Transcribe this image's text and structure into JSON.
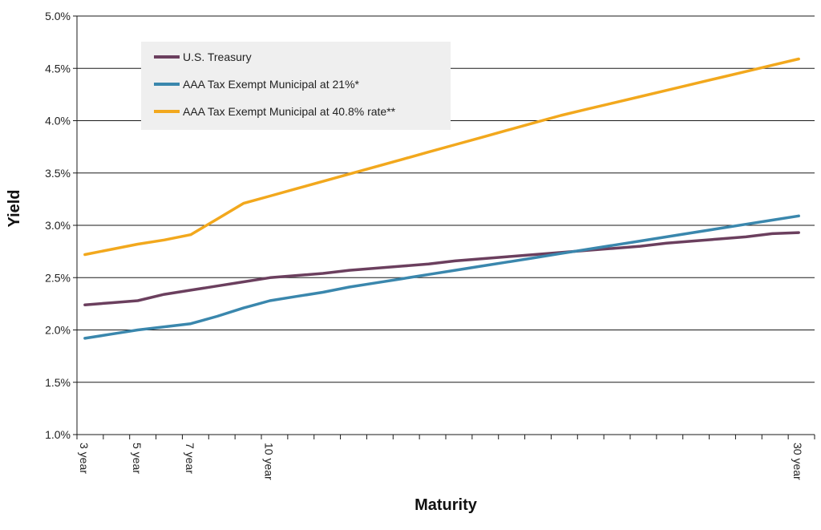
{
  "chart_data": {
    "type": "line",
    "title": "",
    "xlabel": "Maturity",
    "ylabel": "Yield",
    "x": [
      3,
      4,
      5,
      6,
      7,
      8,
      9,
      10,
      11,
      12,
      13,
      14,
      15,
      16,
      17,
      18,
      19,
      20,
      21,
      22,
      23,
      24,
      25,
      26,
      27,
      28,
      29,
      30
    ],
    "xlim": [
      2.7,
      30.6
    ],
    "x_tick_labels": [
      {
        "x": 3,
        "label": "3 year"
      },
      {
        "x": 5,
        "label": "5 year"
      },
      {
        "x": 7,
        "label": "7 year"
      },
      {
        "x": 10,
        "label": "10 year"
      },
      {
        "x": 30,
        "label": "30 year"
      }
    ],
    "ylim": [
      1.0,
      5.0
    ],
    "y_ticks": [
      1.0,
      1.5,
      2.0,
      2.5,
      3.0,
      3.5,
      4.0,
      4.5,
      5.0
    ],
    "y_tick_labels": [
      "1.0%",
      "1.5%",
      "2.0%",
      "2.5%",
      "3.0%",
      "3.5%",
      "4.0%",
      "4.5%",
      "5.0%"
    ],
    "grid": "horizontal",
    "legend_position": "top-left",
    "series": [
      {
        "name": "U.S. Treasury",
        "color": "#6b3f5e",
        "values": [
          2.24,
          2.26,
          2.28,
          2.34,
          2.38,
          2.42,
          2.46,
          2.5,
          2.52,
          2.54,
          2.57,
          2.59,
          2.61,
          2.63,
          2.66,
          2.68,
          2.7,
          2.72,
          2.74,
          2.76,
          2.78,
          2.8,
          2.83,
          2.85,
          2.87,
          2.89,
          2.92,
          2.93
        ]
      },
      {
        "name": "AAA Tax Exempt Municipal at 21%*",
        "color": "#3a87ad",
        "values": [
          1.92,
          1.96,
          2.0,
          2.03,
          2.06,
          2.13,
          2.21,
          2.28,
          2.32,
          2.36,
          2.41,
          2.45,
          2.49,
          2.53,
          2.57,
          2.61,
          2.65,
          2.69,
          2.73,
          2.77,
          2.81,
          2.85,
          2.89,
          2.93,
          2.97,
          3.01,
          3.05,
          3.09
        ]
      },
      {
        "name": "AAA Tax Exempt Municipal at 40.8% rate**",
        "color": "#f2a81d",
        "values": [
          2.72,
          2.77,
          2.82,
          2.86,
          2.91,
          3.06,
          3.21,
          3.28,
          3.35,
          3.42,
          3.49,
          3.56,
          3.63,
          3.7,
          3.77,
          3.84,
          3.91,
          3.98,
          4.05,
          4.11,
          4.17,
          4.23,
          4.29,
          4.35,
          4.41,
          4.47,
          4.53,
          4.59
        ]
      }
    ]
  }
}
